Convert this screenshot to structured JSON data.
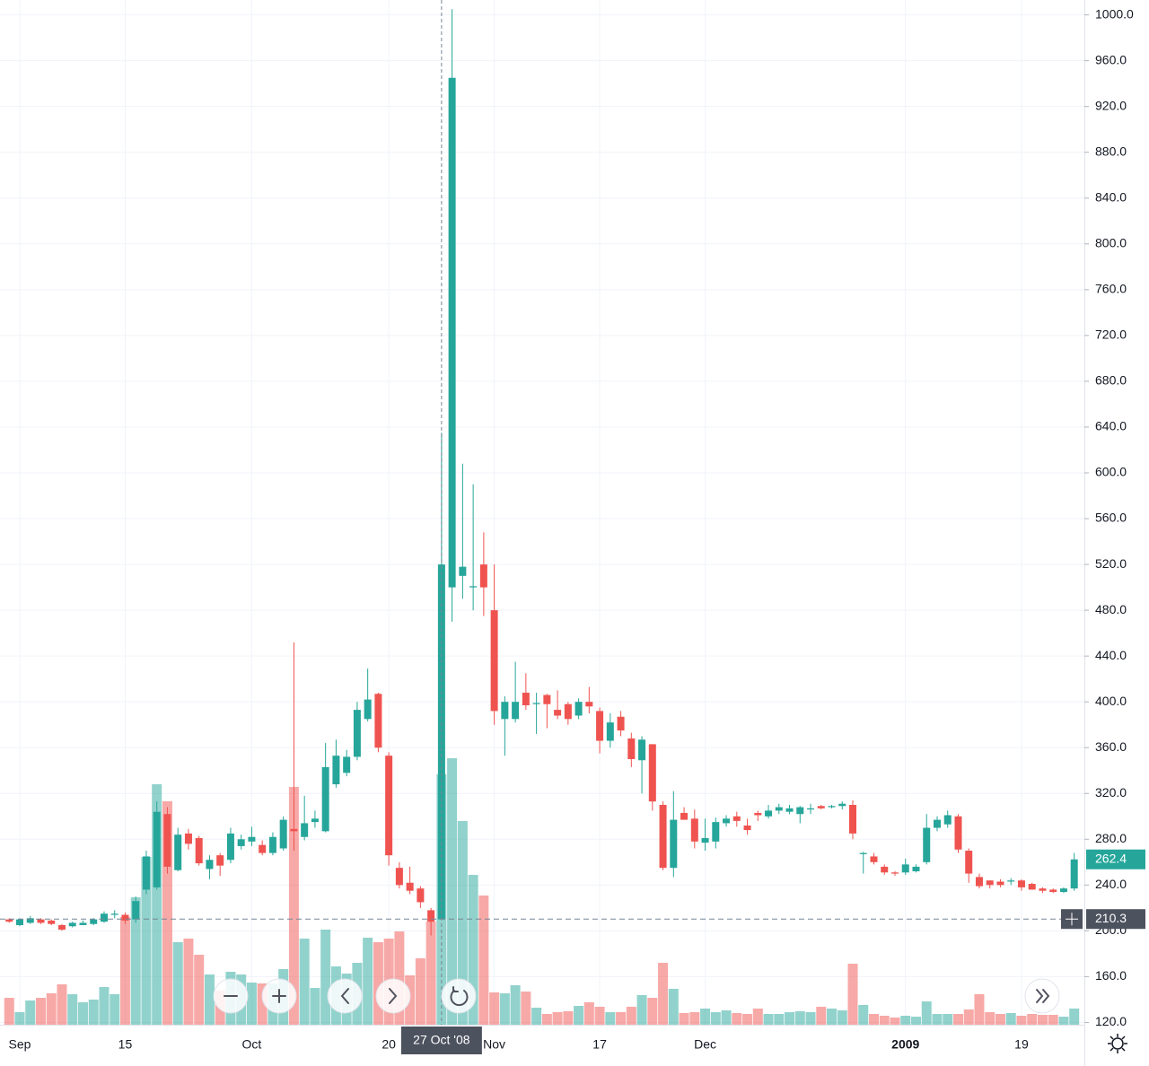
{
  "chart_data": {
    "type": "candlestick",
    "categories": [
      null,
      "Sep",
      null,
      null,
      null,
      null,
      null,
      null,
      null,
      null,
      null,
      "15",
      null,
      null,
      null,
      null,
      null,
      null,
      null,
      null,
      null,
      null,
      null,
      "Oct",
      null,
      null,
      null,
      null,
      null,
      null,
      null,
      null,
      null,
      null,
      null,
      null,
      "20",
      null,
      null,
      null,
      null,
      null,
      null,
      null,
      null,
      null,
      "Nov",
      null,
      null,
      null,
      null,
      null,
      null,
      null,
      null,
      null,
      "17",
      null,
      null,
      null,
      null,
      null,
      null,
      null,
      null,
      null,
      "Dec",
      null,
      null,
      null,
      null,
      null,
      null,
      null,
      null,
      null,
      null,
      null,
      null,
      null,
      null,
      null,
      null,
      null,
      null,
      "2009",
      null,
      null,
      null,
      null,
      null,
      null,
      null,
      null,
      null,
      null,
      "19",
      null,
      null,
      null,
      null,
      null
    ],
    "open": [
      210,
      205,
      207,
      210,
      209,
      205,
      204,
      205,
      206,
      208,
      214,
      214,
      210,
      236,
      238,
      302,
      253,
      285,
      281,
      254,
      266,
      262,
      274,
      278,
      275,
      268,
      272,
      289,
      282,
      295,
      287,
      328,
      338,
      352,
      385,
      407,
      353,
      255,
      242,
      237,
      218,
      210,
      500,
      510,
      500,
      520,
      480,
      385,
      385,
      408,
      398,
      406,
      393,
      398,
      388,
      400,
      392,
      366,
      387,
      368,
      349,
      363,
      310,
      255,
      303,
      298,
      277,
      278,
      294,
      300,
      292,
      303,
      300,
      305,
      304,
      302,
      306,
      309,
      308,
      309,
      310,
      267,
      265,
      256,
      251,
      251,
      252,
      260,
      290,
      293,
      300,
      270,
      247,
      244,
      243,
      243,
      244,
      241,
      237,
      236,
      234,
      237
    ],
    "high": [
      211,
      211,
      213,
      211,
      210,
      206,
      208,
      209,
      211,
      217,
      218,
      216,
      230,
      270,
      313,
      308,
      290,
      289,
      283,
      266,
      268,
      290,
      284,
      291,
      279,
      286,
      300,
      452,
      318,
      305,
      364,
      367,
      358,
      400,
      429,
      408,
      356,
      260,
      256,
      239,
      220,
      635,
      1005,
      608,
      590,
      548,
      520,
      405,
      435,
      425,
      408,
      407,
      410,
      400,
      403,
      413,
      395,
      390,
      392,
      373,
      370,
      363,
      313,
      322,
      308,
      306,
      298,
      299,
      301,
      304,
      298,
      305,
      310,
      311,
      310,
      309,
      311,
      310,
      310,
      313,
      314,
      269,
      268,
      258,
      252,
      263,
      258,
      302,
      300,
      305,
      302,
      272,
      250,
      244,
      245,
      246,
      245,
      242,
      238,
      237,
      238,
      268
    ],
    "low": [
      207,
      204,
      206,
      206,
      205,
      200,
      203,
      205,
      205,
      207,
      211,
      206,
      207,
      232,
      236,
      250,
      252,
      271,
      257,
      245,
      248,
      259,
      271,
      274,
      266,
      266,
      270,
      270,
      279,
      290,
      286,
      325,
      335,
      349,
      383,
      356,
      257,
      237,
      232,
      220,
      196,
      210,
      470,
      490,
      480,
      475,
      380,
      353,
      382,
      393,
      372,
      377,
      385,
      380,
      385,
      390,
      355,
      360,
      370,
      343,
      320,
      305,
      253,
      247,
      297,
      272,
      270,
      272,
      291,
      291,
      284,
      296,
      298,
      302,
      302,
      294,
      302,
      306,
      307,
      306,
      280,
      250,
      258,
      249,
      248,
      249,
      251,
      258,
      287,
      290,
      268,
      242,
      237,
      237,
      238,
      240,
      235,
      236,
      233,
      233,
      233,
      235
    ],
    "close": [
      208,
      210,
      211,
      207,
      206,
      201,
      207,
      207,
      210,
      215,
      215,
      209,
      226,
      265,
      304,
      256,
      284,
      276,
      259,
      262,
      257,
      285,
      280,
      282,
      268,
      282,
      297,
      287,
      294,
      298,
      343,
      353,
      352,
      393,
      402,
      360,
      266,
      240,
      235,
      225,
      208,
      520,
      945,
      518,
      501,
      500,
      392,
      400,
      400,
      397,
      399,
      398,
      388,
      385,
      400,
      396,
      366,
      382,
      375,
      350,
      367,
      313,
      255,
      297,
      297,
      278,
      281,
      295,
      298,
      296,
      288,
      301,
      305,
      308,
      307,
      308,
      307,
      307,
      309,
      311,
      285,
      268,
      260,
      251,
      250,
      258,
      256,
      290,
      297,
      301,
      271,
      250,
      239,
      240,
      240,
      244,
      238,
      236,
      235,
      234,
      237,
      262.4
    ],
    "volume": [
      30,
      14,
      27,
      30,
      35,
      45,
      34,
      25,
      28,
      42,
      34,
      120,
      142,
      187,
      268,
      249,
      92,
      96,
      78,
      56,
      38,
      59,
      56,
      47,
      46,
      46,
      62,
      265,
      96,
      41,
      106,
      65,
      57,
      69,
      97,
      92,
      96,
      104,
      55,
      74,
      115,
      279,
      297,
      227,
      167,
      144,
      36,
      35,
      44,
      37,
      19,
      12,
      14,
      15,
      21,
      25,
      20,
      14,
      14,
      20,
      33,
      30,
      69,
      40,
      13,
      14,
      18,
      14,
      16,
      13,
      12,
      18,
      12,
      12,
      14,
      15,
      14,
      20,
      18,
      16,
      68,
      22,
      12,
      10,
      8,
      10,
      9,
      26,
      12,
      12,
      12,
      17,
      34,
      14,
      12,
      13,
      10,
      12,
      11,
      11,
      9,
      18
    ],
    "up_color": "#26a69a",
    "down_color": "#ef5350",
    "ylim": [
      118,
      1013
    ],
    "yticks": [
      {
        "value": 120,
        "label": "120.0"
      },
      {
        "value": 160,
        "label": "160.0"
      },
      {
        "value": 200,
        "label": "200.0"
      },
      {
        "value": 240,
        "label": "240.0"
      },
      {
        "value": 280,
        "label": "280.0"
      },
      {
        "value": 320,
        "label": "320.0"
      },
      {
        "value": 360,
        "label": "360.0"
      },
      {
        "value": 400,
        "label": "400.0"
      },
      {
        "value": 440,
        "label": "440.0"
      },
      {
        "value": 480,
        "label": "480.0"
      },
      {
        "value": 520,
        "label": "520.0"
      },
      {
        "value": 560,
        "label": "560.0"
      },
      {
        "value": 600,
        "label": "600.0"
      },
      {
        "value": 640,
        "label": "640.0"
      },
      {
        "value": 680,
        "label": "680.0"
      },
      {
        "value": 720,
        "label": "720.0"
      },
      {
        "value": 760,
        "label": "760.0"
      },
      {
        "value": 800,
        "label": "800.0"
      },
      {
        "value": 840,
        "label": "840.0"
      },
      {
        "value": 880,
        "label": "880.0"
      },
      {
        "value": 920,
        "label": "920.0"
      },
      {
        "value": 960,
        "label": "960.0"
      },
      {
        "value": 1000,
        "label": "1000.0"
      }
    ],
    "grid": true,
    "crosshair": {
      "x": 41,
      "x_label": "27 Oct '08",
      "y": 210.3
    }
  }
}
